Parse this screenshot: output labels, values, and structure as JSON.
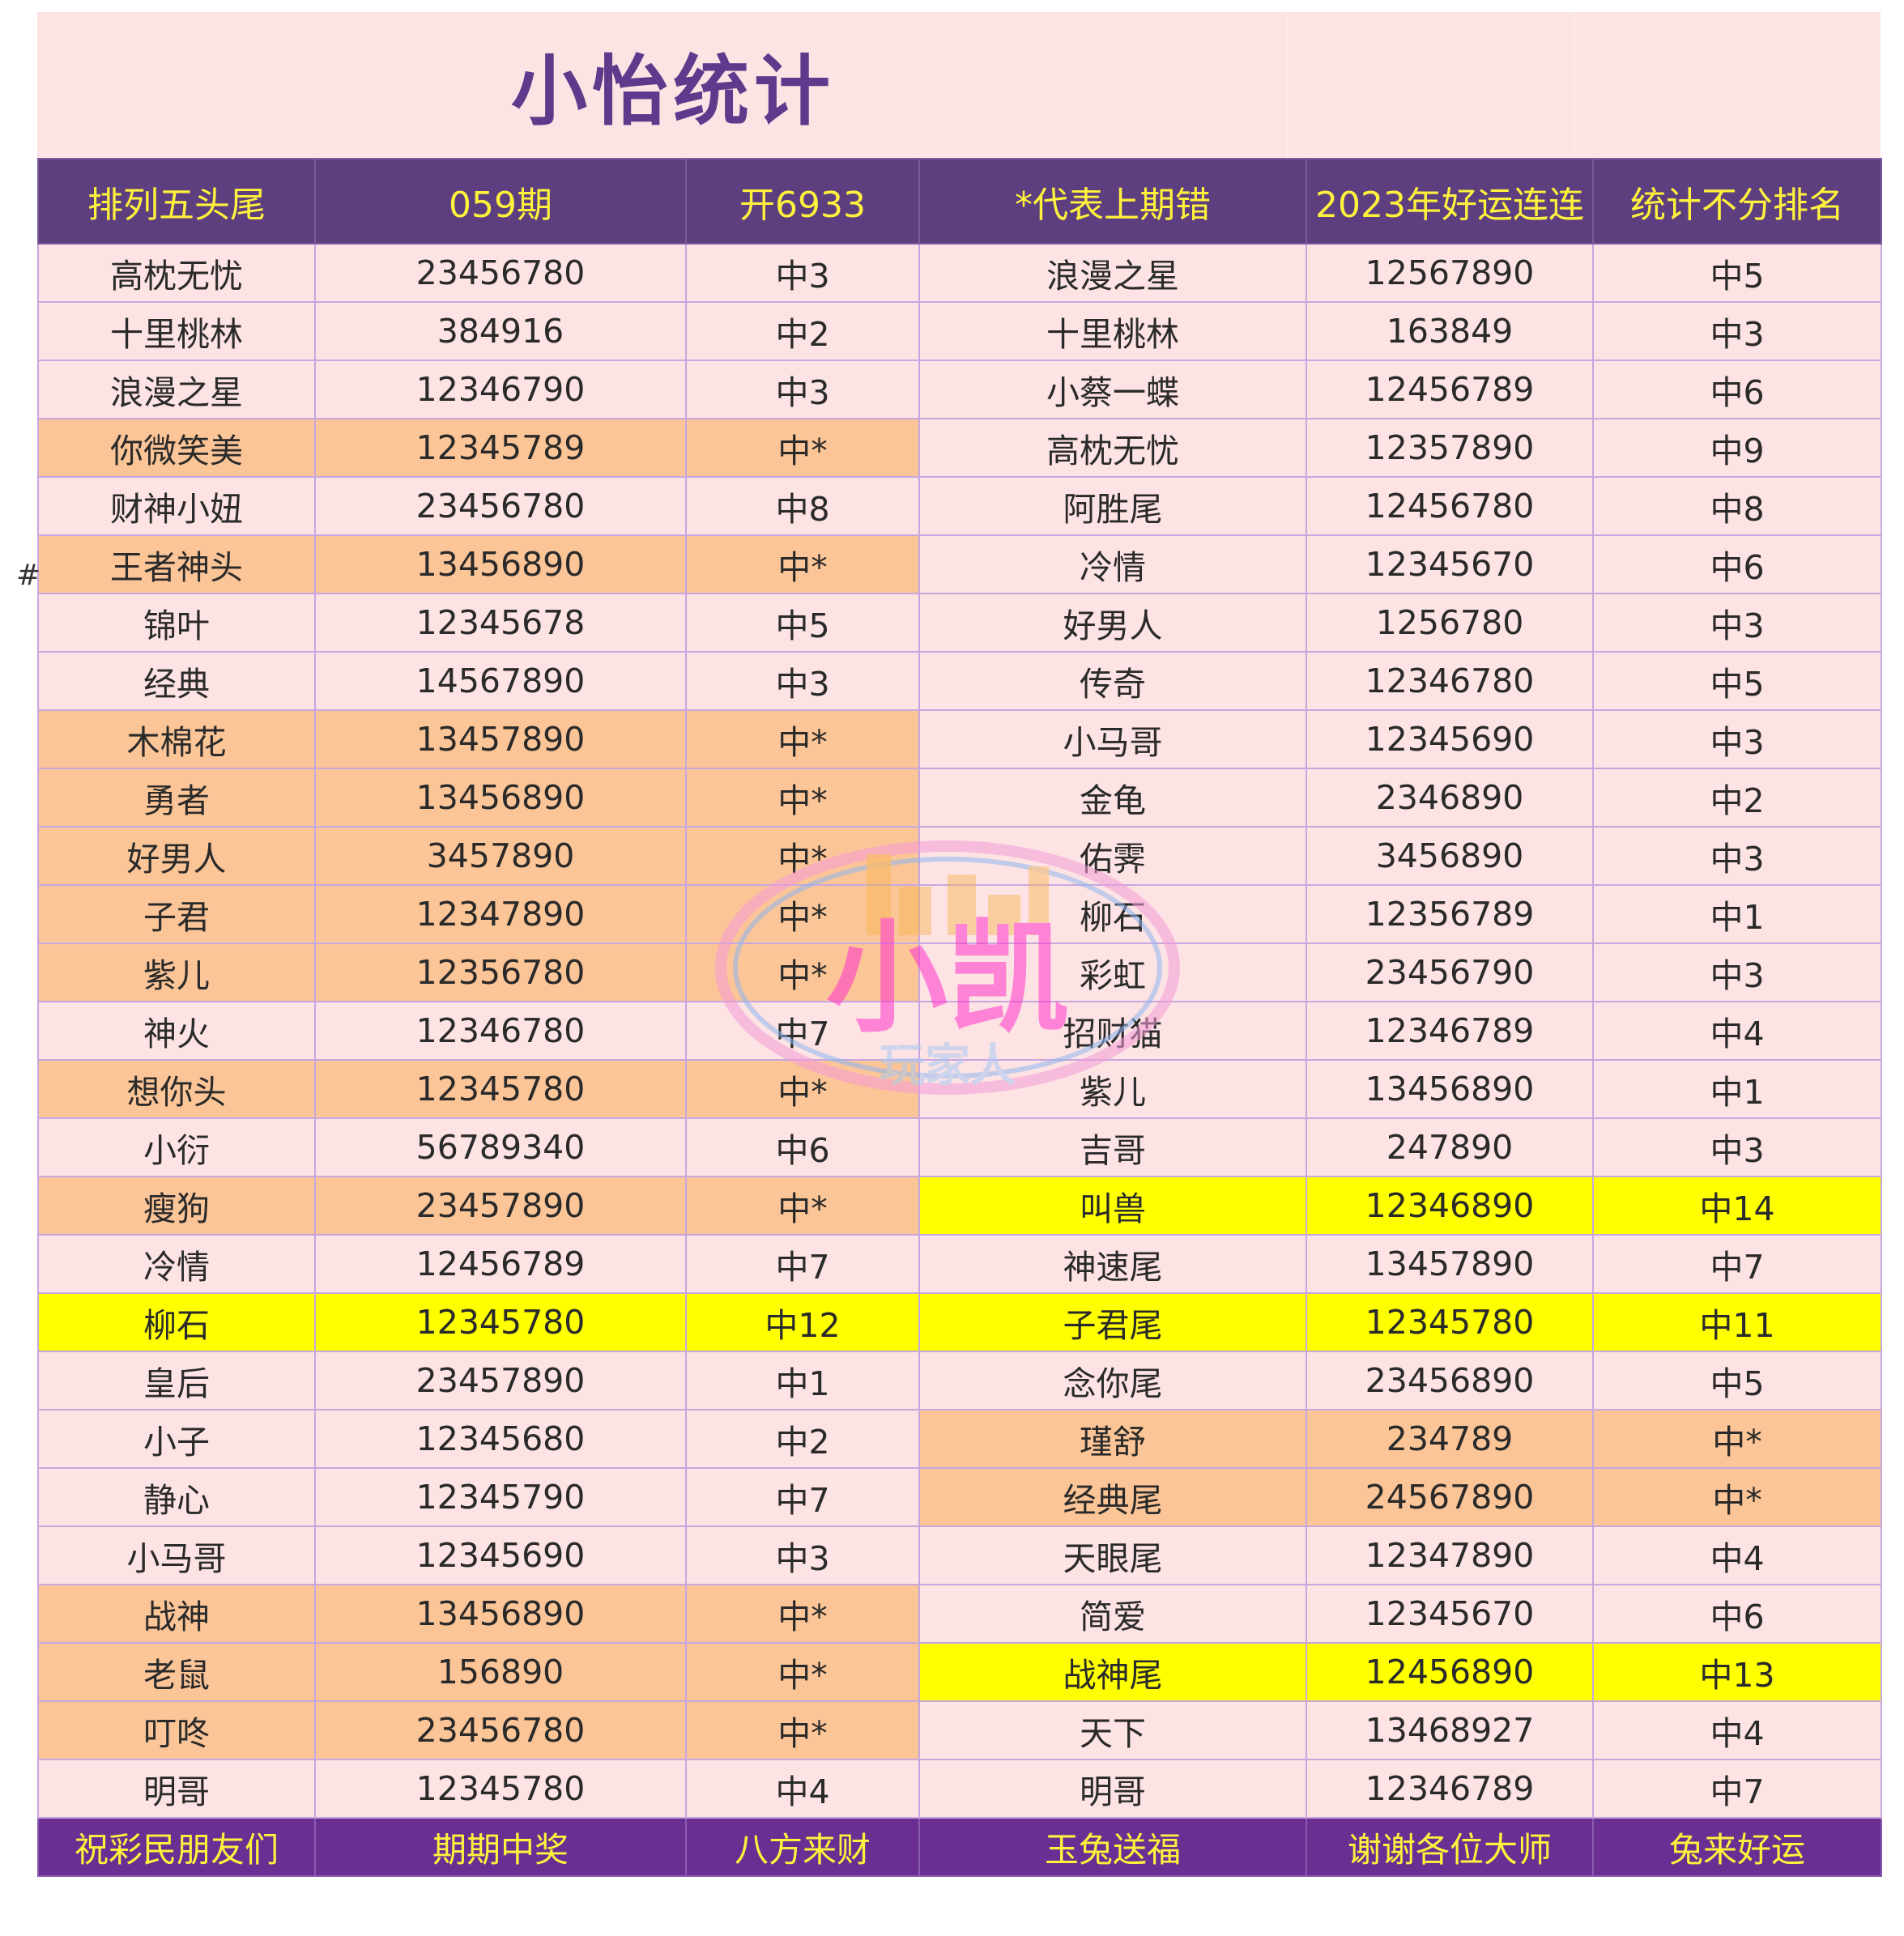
{
  "title": "小怡统计",
  "side_mark": "#",
  "watermark": {
    "main": "小凯",
    "sub": "玩家人"
  },
  "headers": [
    "排列五头尾",
    "059期",
    "开6933",
    "*代表上期错",
    "2023年好运连连",
    "统计不分排名"
  ],
  "rows": [
    [
      [
        "高枕无忧",
        "p"
      ],
      [
        "23456780",
        "p"
      ],
      [
        "中3",
        "p"
      ],
      [
        "浪漫之星",
        "p"
      ],
      [
        "12567890",
        "p"
      ],
      [
        "中5",
        "p"
      ]
    ],
    [
      [
        "十里桃林",
        "p"
      ],
      [
        "384916",
        "p"
      ],
      [
        "中2",
        "p"
      ],
      [
        "十里桃林",
        "p"
      ],
      [
        "163849",
        "p"
      ],
      [
        "中3",
        "p"
      ]
    ],
    [
      [
        "浪漫之星",
        "p"
      ],
      [
        "12346790",
        "p"
      ],
      [
        "中3",
        "p"
      ],
      [
        "小蔡一蝶",
        "p"
      ],
      [
        "12456789",
        "p"
      ],
      [
        "中6",
        "p"
      ]
    ],
    [
      [
        "你微笑美",
        "o"
      ],
      [
        "12345789",
        "o"
      ],
      [
        "中*",
        "o"
      ],
      [
        "高枕无忧",
        "p"
      ],
      [
        "12357890",
        "p"
      ],
      [
        "中9",
        "p"
      ]
    ],
    [
      [
        "财神小妞",
        "p"
      ],
      [
        "23456780",
        "p"
      ],
      [
        "中8",
        "p"
      ],
      [
        "阿胜尾",
        "p"
      ],
      [
        "12456780",
        "p"
      ],
      [
        "中8",
        "p"
      ]
    ],
    [
      [
        "王者神头",
        "o"
      ],
      [
        "13456890",
        "o"
      ],
      [
        "中*",
        "o"
      ],
      [
        "冷情",
        "p"
      ],
      [
        "12345670",
        "p"
      ],
      [
        "中6",
        "p"
      ]
    ],
    [
      [
        "锦叶",
        "p"
      ],
      [
        "12345678",
        "p"
      ],
      [
        "中5",
        "p"
      ],
      [
        "好男人",
        "p"
      ],
      [
        "1256780",
        "p"
      ],
      [
        "中3",
        "p"
      ]
    ],
    [
      [
        "经典",
        "p"
      ],
      [
        "14567890",
        "p"
      ],
      [
        "中3",
        "p"
      ],
      [
        "传奇",
        "p"
      ],
      [
        "12346780",
        "p"
      ],
      [
        "中5",
        "p"
      ]
    ],
    [
      [
        "木棉花",
        "o"
      ],
      [
        "13457890",
        "o"
      ],
      [
        "中*",
        "o"
      ],
      [
        "小马哥",
        "p"
      ],
      [
        "12345690",
        "p"
      ],
      [
        "中3",
        "p"
      ]
    ],
    [
      [
        "勇者",
        "o"
      ],
      [
        "13456890",
        "o"
      ],
      [
        "中*",
        "o"
      ],
      [
        "金龟",
        "p"
      ],
      [
        "2346890",
        "p"
      ],
      [
        "中2",
        "p"
      ]
    ],
    [
      [
        "好男人",
        "o"
      ],
      [
        "3457890",
        "o"
      ],
      [
        "中*",
        "o"
      ],
      [
        "佑霁",
        "p"
      ],
      [
        "3456890",
        "p"
      ],
      [
        "中3",
        "p"
      ]
    ],
    [
      [
        "子君",
        "o"
      ],
      [
        "12347890",
        "o"
      ],
      [
        "中*",
        "o"
      ],
      [
        "柳石",
        "p"
      ],
      [
        "12356789",
        "p"
      ],
      [
        "中1",
        "p"
      ]
    ],
    [
      [
        "紫儿",
        "o"
      ],
      [
        "12356780",
        "o"
      ],
      [
        "中*",
        "o"
      ],
      [
        "彩虹",
        "p"
      ],
      [
        "23456790",
        "p"
      ],
      [
        "中3",
        "p"
      ]
    ],
    [
      [
        "神火",
        "p"
      ],
      [
        "12346780",
        "p"
      ],
      [
        "中7",
        "p"
      ],
      [
        "招财猫",
        "p"
      ],
      [
        "12346789",
        "p"
      ],
      [
        "中4",
        "p"
      ]
    ],
    [
      [
        "想你头",
        "o"
      ],
      [
        "12345780",
        "o"
      ],
      [
        "中*",
        "o"
      ],
      [
        "紫儿",
        "p"
      ],
      [
        "13456890",
        "p"
      ],
      [
        "中1",
        "p"
      ]
    ],
    [
      [
        "小衍",
        "p"
      ],
      [
        "56789340",
        "p"
      ],
      [
        "中6",
        "p"
      ],
      [
        "吉哥",
        "p"
      ],
      [
        "247890",
        "p"
      ],
      [
        "中3",
        "p"
      ]
    ],
    [
      [
        "瘦狗",
        "o"
      ],
      [
        "23457890",
        "o"
      ],
      [
        "中*",
        "o"
      ],
      [
        "叫兽",
        "y"
      ],
      [
        "12346890",
        "y"
      ],
      [
        "中14",
        "y"
      ]
    ],
    [
      [
        "冷情",
        "p"
      ],
      [
        "12456789",
        "p"
      ],
      [
        "中7",
        "p"
      ],
      [
        "神速尾",
        "p"
      ],
      [
        "13457890",
        "p"
      ],
      [
        "中7",
        "p"
      ]
    ],
    [
      [
        "柳石",
        "y"
      ],
      [
        "12345780",
        "y"
      ],
      [
        "中12",
        "y"
      ],
      [
        "子君尾",
        "y"
      ],
      [
        "12345780",
        "y"
      ],
      [
        "中11",
        "y"
      ]
    ],
    [
      [
        "皇后",
        "p"
      ],
      [
        "23457890",
        "p"
      ],
      [
        "中1",
        "p"
      ],
      [
        "念你尾",
        "p"
      ],
      [
        "23456890",
        "p"
      ],
      [
        "中5",
        "p"
      ]
    ],
    [
      [
        "小子",
        "p"
      ],
      [
        "12345680",
        "p"
      ],
      [
        "中2",
        "p"
      ],
      [
        "瑾舒",
        "o"
      ],
      [
        "234789",
        "o"
      ],
      [
        "中*",
        "o"
      ]
    ],
    [
      [
        "静心",
        "p"
      ],
      [
        "12345790",
        "p"
      ],
      [
        "中7",
        "p"
      ],
      [
        "经典尾",
        "o"
      ],
      [
        "24567890",
        "o"
      ],
      [
        "中*",
        "o"
      ]
    ],
    [
      [
        "小马哥",
        "p"
      ],
      [
        "12345690",
        "p"
      ],
      [
        "中3",
        "p"
      ],
      [
        "天眼尾",
        "p"
      ],
      [
        "12347890",
        "p"
      ],
      [
        "中4",
        "p"
      ]
    ],
    [
      [
        "战神",
        "o"
      ],
      [
        "13456890",
        "o"
      ],
      [
        "中*",
        "o"
      ],
      [
        "简爱",
        "p"
      ],
      [
        "12345670",
        "p"
      ],
      [
        "中6",
        "p"
      ]
    ],
    [
      [
        "老鼠",
        "o"
      ],
      [
        "156890",
        "o"
      ],
      [
        "中*",
        "o"
      ],
      [
        "战神尾",
        "y"
      ],
      [
        "12456890",
        "y"
      ],
      [
        "中13",
        "y"
      ]
    ],
    [
      [
        "叮咚",
        "o"
      ],
      [
        "23456780",
        "o"
      ],
      [
        "中*",
        "o"
      ],
      [
        "天下",
        "p"
      ],
      [
        "13468927",
        "p"
      ],
      [
        "中4",
        "p"
      ]
    ],
    [
      [
        "明哥",
        "p"
      ],
      [
        "12345780",
        "p"
      ],
      [
        "中4",
        "p"
      ],
      [
        "明哥",
        "p"
      ],
      [
        "12346789",
        "p"
      ],
      [
        "中7",
        "p"
      ]
    ]
  ],
  "footer": [
    "祝彩民朋友们",
    "期期中奖",
    "八方来财",
    "玉兔送福",
    "谢谢各位大师",
    "兔来好运"
  ]
}
